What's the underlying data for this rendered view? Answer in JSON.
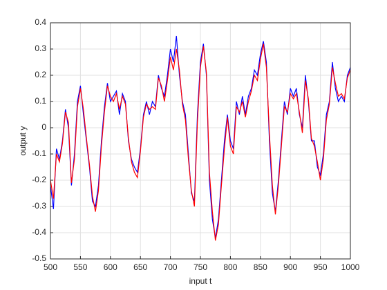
{
  "chart_data": {
    "type": "line",
    "xlabel": "input t",
    "ylabel": "output y",
    "x": [
      500,
      505,
      510,
      515,
      520,
      525,
      530,
      535,
      540,
      545,
      550,
      555,
      560,
      565,
      570,
      575,
      580,
      585,
      590,
      595,
      600,
      605,
      610,
      615,
      620,
      625,
      630,
      635,
      640,
      645,
      650,
      655,
      660,
      665,
      670,
      675,
      680,
      685,
      690,
      695,
      700,
      705,
      710,
      715,
      720,
      725,
      730,
      735,
      740,
      745,
      750,
      755,
      760,
      765,
      770,
      775,
      780,
      785,
      790,
      795,
      800,
      805,
      810,
      815,
      820,
      825,
      830,
      835,
      840,
      845,
      850,
      855,
      860,
      865,
      870,
      875,
      880,
      885,
      890,
      895,
      900,
      905,
      910,
      915,
      920,
      925,
      930,
      935,
      940,
      945,
      950,
      955,
      960,
      965,
      970,
      975,
      980,
      985,
      990,
      995,
      1000
    ],
    "series": [
      {
        "color": "#0000ff",
        "values": [
          -0.22,
          -0.31,
          -0.08,
          -0.12,
          -0.05,
          0.07,
          0.0,
          -0.22,
          -0.1,
          0.1,
          0.16,
          0.05,
          -0.05,
          -0.15,
          -0.28,
          -0.3,
          -0.22,
          -0.05,
          0.08,
          0.17,
          0.1,
          0.12,
          0.14,
          0.05,
          0.13,
          0.1,
          -0.05,
          -0.12,
          -0.15,
          -0.17,
          -0.08,
          0.05,
          0.1,
          0.05,
          0.1,
          0.08,
          0.2,
          0.15,
          0.12,
          0.2,
          0.3,
          0.25,
          0.35,
          0.2,
          0.1,
          0.05,
          -0.1,
          -0.25,
          -0.28,
          0.05,
          0.25,
          0.32,
          0.2,
          -0.2,
          -0.35,
          -0.42,
          -0.35,
          -0.2,
          -0.05,
          0.05,
          -0.05,
          -0.08,
          0.1,
          0.05,
          0.12,
          0.05,
          0.12,
          0.15,
          0.22,
          0.2,
          0.28,
          0.33,
          0.25,
          -0.05,
          -0.25,
          -0.32,
          -0.2,
          -0.05,
          0.1,
          0.05,
          0.15,
          0.12,
          0.15,
          0.05,
          0.0,
          0.2,
          0.1,
          -0.05,
          -0.05,
          -0.15,
          -0.18,
          -0.1,
          0.05,
          0.1,
          0.25,
          0.15,
          0.1,
          0.12,
          0.1,
          0.2,
          0.23
        ]
      },
      {
        "color": "#ff0000",
        "values": [
          -0.2,
          -0.27,
          -0.1,
          -0.13,
          -0.06,
          0.06,
          0.02,
          -0.21,
          -0.12,
          0.08,
          0.15,
          0.07,
          -0.04,
          -0.14,
          -0.26,
          -0.32,
          -0.24,
          -0.07,
          0.06,
          0.16,
          0.12,
          0.1,
          0.13,
          0.07,
          0.12,
          0.09,
          -0.04,
          -0.13,
          -0.17,
          -0.19,
          -0.09,
          0.04,
          0.09,
          0.07,
          0.08,
          0.07,
          0.19,
          0.16,
          0.1,
          0.18,
          0.27,
          0.22,
          0.3,
          0.22,
          0.09,
          0.03,
          -0.12,
          -0.24,
          -0.3,
          0.02,
          0.23,
          0.31,
          0.21,
          -0.17,
          -0.32,
          -0.43,
          -0.37,
          -0.22,
          -0.08,
          0.04,
          -0.07,
          -0.1,
          0.08,
          0.06,
          0.1,
          0.04,
          0.1,
          0.14,
          0.2,
          0.18,
          0.26,
          0.32,
          0.23,
          -0.02,
          -0.22,
          -0.33,
          -0.22,
          -0.07,
          0.08,
          0.06,
          0.13,
          0.11,
          0.13,
          0.06,
          -0.02,
          0.18,
          0.11,
          -0.04,
          -0.07,
          -0.13,
          -0.2,
          -0.12,
          0.03,
          0.09,
          0.23,
          0.17,
          0.12,
          0.13,
          0.11,
          0.19,
          0.22
        ]
      }
    ],
    "xlim": [
      500,
      1000
    ],
    "xticks": [
      500,
      550,
      600,
      650,
      700,
      750,
      800,
      850,
      900,
      950,
      1000
    ],
    "ylim": [
      -0.5,
      0.4
    ],
    "yticks": [
      -0.5,
      -0.4,
      -0.3,
      -0.2,
      -0.1,
      0,
      0.1,
      0.2,
      0.3,
      0.4
    ],
    "grid": true
  }
}
